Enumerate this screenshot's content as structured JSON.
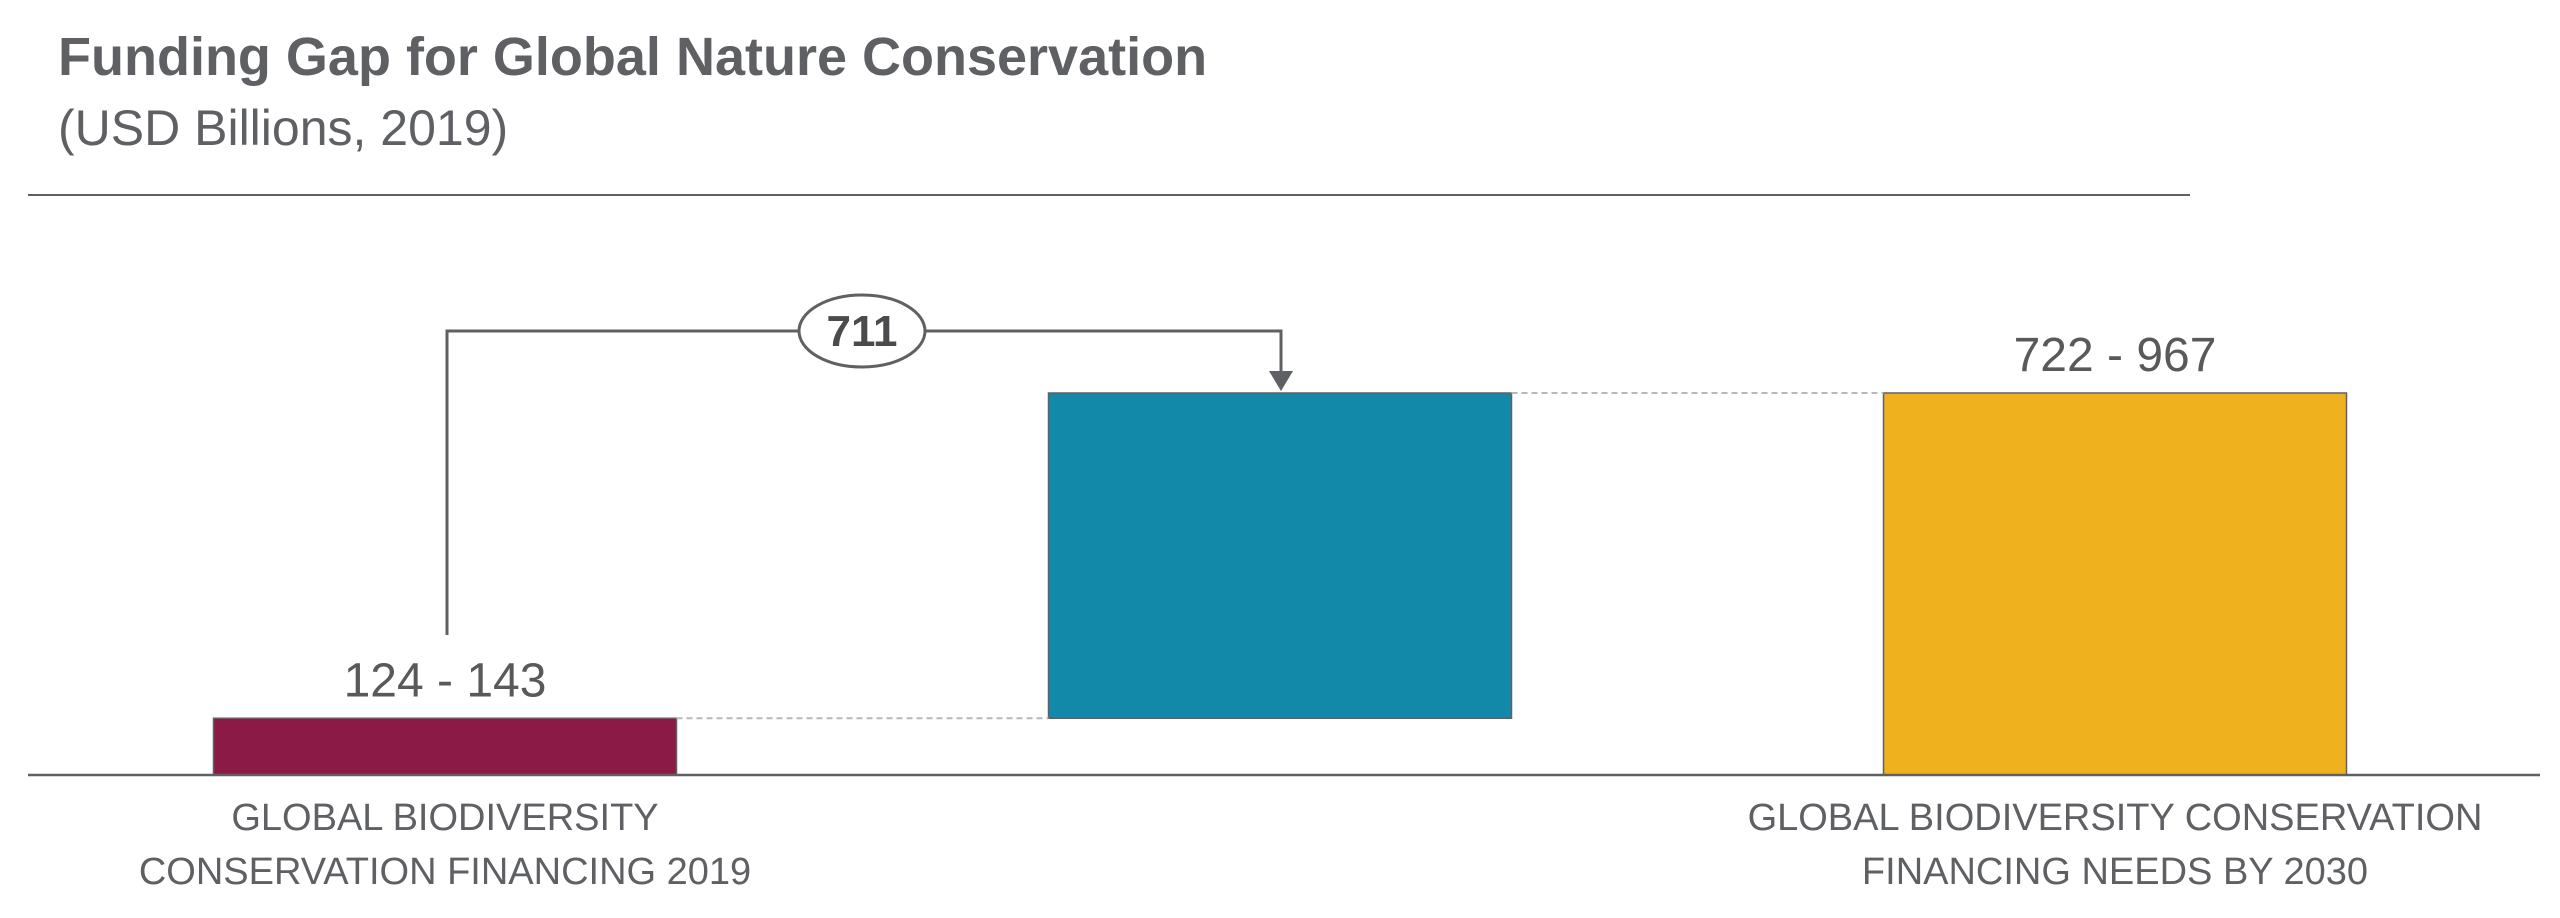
{
  "chart_data": {
    "type": "bar",
    "subtype": "waterfall",
    "title": "Funding Gap for Global Nature Conservation",
    "subtitle": "(USD Billions, 2019)",
    "categories": [
      [
        "GLOBAL BIODIVERSITY",
        "CONSERVATION FINANCING 2019"
      ],
      [
        "",
        ""
      ],
      [
        "GLOBAL BIODIVERSITY CONSERVATION",
        "FINANCING NEEDS BY 2030"
      ]
    ],
    "bars": [
      {
        "role": "start",
        "base": 0,
        "value": 124,
        "label": "124 - 143",
        "color": "#8b1a47"
      },
      {
        "role": "gap",
        "base": 124,
        "value": 711,
        "label": "711",
        "color": "#1389a9"
      },
      {
        "role": "total",
        "base": 0,
        "value": 835,
        "label": "722 - 967",
        "color": "#f0b11f"
      }
    ],
    "connectors": true,
    "gap_arrow": {
      "from_bar": 0,
      "to_bar": 1,
      "label": "711"
    },
    "ylim": [
      0,
      1000
    ],
    "grid": false,
    "legend": "none",
    "colors": {
      "text": "#5e6064",
      "axis": "#5e6064",
      "connector": "#b7b8ba"
    }
  }
}
